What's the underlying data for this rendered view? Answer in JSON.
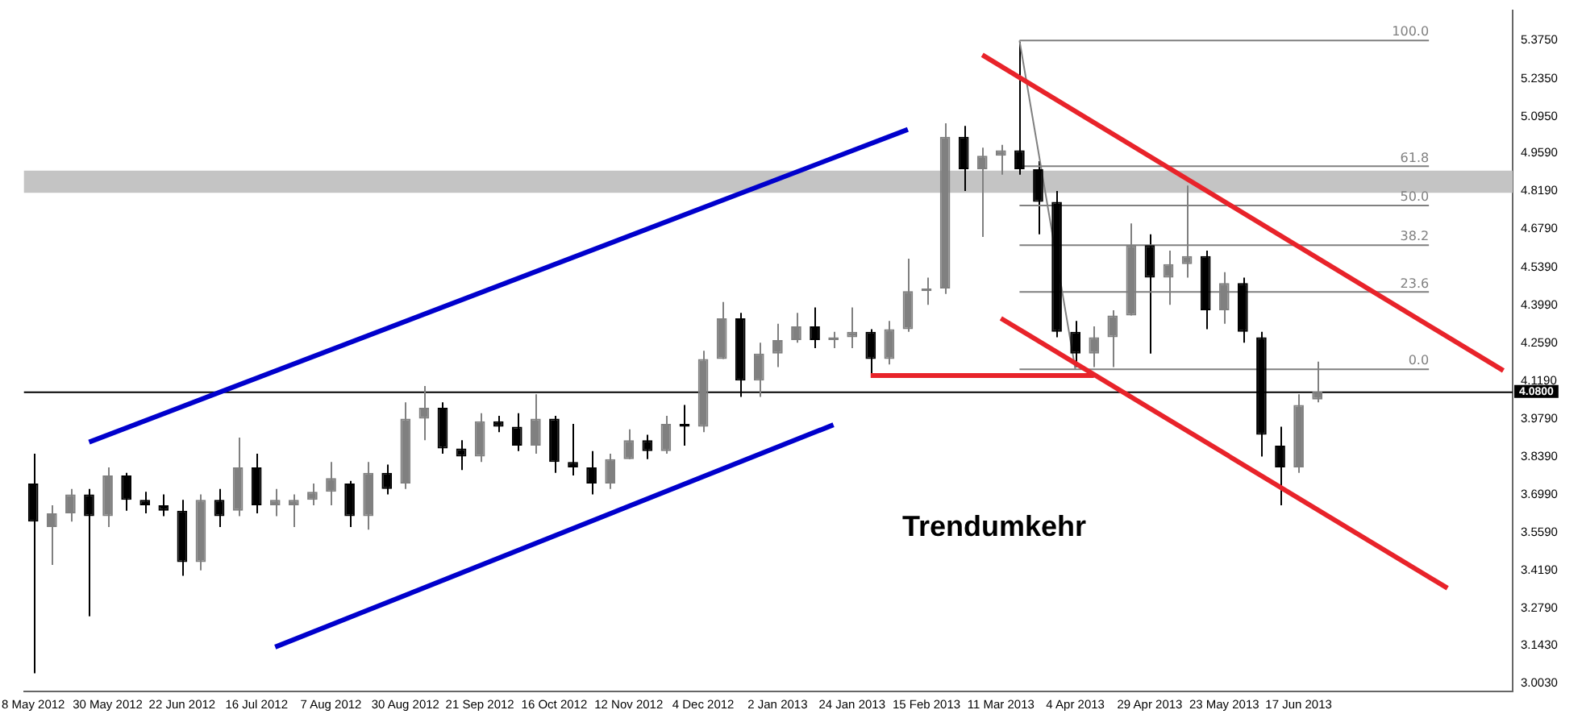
{
  "chart_data": {
    "type": "candlestick",
    "categories": [
      "8 May 2012",
      null,
      null,
      null,
      "30 May 2012",
      null,
      null,
      null,
      "22 Jun 2012",
      null,
      null,
      null,
      "16 Jul 2012",
      null,
      null,
      null,
      "7 Aug 2012",
      null,
      null,
      null,
      "30 Aug 2012",
      null,
      null,
      null,
      "21 Sep 2012",
      null,
      null,
      null,
      "16 Oct 2012",
      null,
      null,
      null,
      "12 Nov 2012",
      null,
      null,
      null,
      "4 Dec 2012",
      null,
      null,
      null,
      "2 Jan 2013",
      null,
      null,
      null,
      "24 Jan 2013",
      null,
      null,
      null,
      "15 Feb 2013",
      null,
      null,
      null,
      "11 Mar 2013",
      null,
      null,
      null,
      "4 Apr 2013",
      null,
      null,
      null,
      "29 Apr 2013",
      null,
      null,
      null,
      "23 May 2013",
      null,
      null,
      null,
      "17 Jun 2013",
      null,
      null,
      null,
      null,
      null,
      null,
      null,
      null,
      null,
      null,
      null
    ],
    "ylim": [
      2.973,
      5.486
    ],
    "yticks": [
      {
        "value": 5.375,
        "label": "5.3750"
      },
      {
        "value": 5.235,
        "label": "5.2350"
      },
      {
        "value": 5.095,
        "label": "5.0950"
      },
      {
        "value": 4.959,
        "label": "4.9590"
      },
      {
        "value": 4.819,
        "label": "4.8190"
      },
      {
        "value": 4.679,
        "label": "4.6790"
      },
      {
        "value": 4.539,
        "label": "4.5390"
      },
      {
        "value": 4.399,
        "label": "4.3990"
      },
      {
        "value": 4.259,
        "label": "4.2590"
      },
      {
        "value": 4.119,
        "label": "4.1190"
      },
      {
        "value": 3.979,
        "label": "3.9790"
      },
      {
        "value": 3.839,
        "label": "3.8390"
      },
      {
        "value": 3.699,
        "label": "3.6990"
      },
      {
        "value": 3.559,
        "label": "3.5590"
      },
      {
        "value": 3.419,
        "label": "3.4190"
      },
      {
        "value": 3.279,
        "label": "3.2790"
      },
      {
        "value": 3.143,
        "label": "3.1430"
      },
      {
        "value": 3.003,
        "label": "3.0030"
      }
    ],
    "ref_lines": [
      {
        "axis": "y",
        "value": 4.08,
        "label": "4.0800",
        "color": "#000000"
      }
    ],
    "bands": [
      {
        "axis": "y",
        "from": 4.813,
        "to": 4.895,
        "color": "#c4c4c4"
      }
    ],
    "annotations": [
      "Trendumkehr"
    ],
    "legend": false,
    "series": [
      {
        "type": "candlestick",
        "colors": [
          "#000000",
          "#808080",
          "#808080",
          "#000000",
          "#808080",
          "#000000",
          "#000000",
          "#000000",
          "#000000",
          "#808080",
          "#000000",
          "#808080",
          "#000000",
          "#808080",
          "#808080",
          "#808080",
          "#808080",
          "#000000",
          "#808080",
          "#000000",
          "#808080",
          "#808080",
          "#000000",
          "#000000",
          "#808080",
          "#000000",
          "#000000",
          "#808080",
          "#000000",
          "#000000",
          "#000000",
          "#808080",
          "#808080",
          "#000000",
          "#808080",
          "#000000",
          "#808080",
          "#808080",
          "#000000",
          "#808080",
          "#808080",
          "#808080",
          "#000000",
          "#808080",
          "#808080",
          "#000000",
          "#808080",
          "#808080",
          "#808080",
          "#808080",
          "#000000",
          "#808080",
          "#808080",
          "#000000",
          "#000000",
          "#000000",
          "#000000",
          "#808080",
          "#808080",
          "#808080",
          "#000000",
          "#808080",
          "#808080",
          "#000000",
          "#808080",
          "#000000",
          "#000000",
          "#000000",
          "#808080",
          "#808080",
          null,
          null,
          null,
          null,
          null,
          null,
          null,
          null,
          null,
          null
        ],
        "ohlc": [
          [
            3.74,
            3.85,
            3.04,
            3.6
          ],
          [
            3.58,
            3.66,
            3.44,
            3.63
          ],
          [
            3.63,
            3.72,
            3.6,
            3.7
          ],
          [
            3.7,
            3.72,
            3.25,
            3.62
          ],
          [
            3.62,
            3.8,
            3.58,
            3.77
          ],
          [
            3.77,
            3.78,
            3.64,
            3.68
          ],
          [
            3.68,
            3.71,
            3.63,
            3.66
          ],
          [
            3.66,
            3.7,
            3.62,
            3.64
          ],
          [
            3.64,
            3.68,
            3.4,
            3.45
          ],
          [
            3.45,
            3.7,
            3.42,
            3.68
          ],
          [
            3.68,
            3.72,
            3.58,
            3.62
          ],
          [
            3.64,
            3.91,
            3.62,
            3.8
          ],
          [
            3.8,
            3.85,
            3.63,
            3.66
          ],
          [
            3.66,
            3.72,
            3.62,
            3.68
          ],
          [
            3.66,
            3.7,
            3.58,
            3.68
          ],
          [
            3.68,
            3.74,
            3.66,
            3.71
          ],
          [
            3.71,
            3.82,
            3.66,
            3.76
          ],
          [
            3.74,
            3.75,
            3.58,
            3.62
          ],
          [
            3.62,
            3.82,
            3.57,
            3.78
          ],
          [
            3.78,
            3.81,
            3.7,
            3.72
          ],
          [
            3.74,
            4.04,
            3.72,
            3.98
          ],
          [
            3.98,
            4.1,
            3.9,
            4.02
          ],
          [
            4.02,
            4.04,
            3.85,
            3.87
          ],
          [
            3.87,
            3.9,
            3.79,
            3.84
          ],
          [
            3.84,
            4.0,
            3.82,
            3.97
          ],
          [
            3.97,
            3.99,
            3.93,
            3.95
          ],
          [
            3.95,
            4.0,
            3.86,
            3.88
          ],
          [
            3.88,
            4.07,
            3.85,
            3.98
          ],
          [
            3.98,
            3.99,
            3.78,
            3.82
          ],
          [
            3.82,
            3.96,
            3.77,
            3.8
          ],
          [
            3.8,
            3.86,
            3.7,
            3.74
          ],
          [
            3.74,
            3.85,
            3.72,
            3.83
          ],
          [
            3.83,
            3.94,
            3.83,
            3.9
          ],
          [
            3.9,
            3.92,
            3.83,
            3.86
          ],
          [
            3.86,
            3.99,
            3.85,
            3.96
          ],
          [
            3.96,
            4.03,
            3.88,
            3.95
          ],
          [
            3.95,
            4.23,
            3.93,
            4.2
          ],
          [
            4.2,
            4.41,
            4.2,
            4.35
          ],
          [
            4.35,
            4.37,
            4.06,
            4.12
          ],
          [
            4.12,
            4.26,
            4.06,
            4.22
          ],
          [
            4.22,
            4.33,
            4.17,
            4.27
          ],
          [
            4.27,
            4.37,
            4.26,
            4.32
          ],
          [
            4.32,
            4.39,
            4.24,
            4.27
          ],
          [
            4.27,
            4.3,
            4.24,
            4.28
          ],
          [
            4.28,
            4.39,
            4.24,
            4.3
          ],
          [
            4.3,
            4.31,
            4.14,
            4.2
          ],
          [
            4.2,
            4.34,
            4.18,
            4.31
          ],
          [
            4.31,
            4.57,
            4.3,
            4.45
          ],
          [
            4.45,
            4.5,
            4.4,
            4.46
          ],
          [
            4.46,
            5.07,
            4.44,
            5.02
          ],
          [
            5.02,
            5.06,
            4.82,
            4.9
          ],
          [
            4.9,
            4.98,
            4.65,
            4.95
          ],
          [
            4.95,
            4.99,
            4.88,
            4.97
          ],
          [
            4.97,
            5.37,
            4.88,
            4.9
          ],
          [
            4.9,
            4.93,
            4.66,
            4.78
          ],
          [
            4.78,
            4.82,
            4.28,
            4.3
          ],
          [
            4.3,
            4.34,
            4.17,
            4.22
          ],
          [
            4.22,
            4.32,
            4.17,
            4.28
          ],
          [
            4.28,
            4.38,
            4.17,
            4.36
          ],
          [
            4.36,
            4.7,
            4.36,
            4.62
          ],
          [
            4.62,
            4.66,
            4.22,
            4.5
          ],
          [
            4.5,
            4.6,
            4.4,
            4.55
          ],
          [
            4.55,
            4.84,
            4.5,
            4.58
          ],
          [
            4.58,
            4.6,
            4.31,
            4.38
          ],
          [
            4.38,
            4.52,
            4.33,
            4.48
          ],
          [
            4.48,
            4.5,
            4.26,
            4.3
          ],
          [
            4.28,
            4.3,
            3.84,
            3.92
          ],
          [
            3.88,
            3.95,
            3.66,
            3.8
          ],
          [
            3.8,
            4.07,
            3.78,
            4.03
          ],
          [
            4.05,
            4.19,
            4.04,
            4.08
          ],
          null,
          null,
          null,
          null,
          null,
          null,
          null,
          null,
          null,
          null
        ]
      },
      {
        "type": "line",
        "color": "#0000cc",
        "values": [
          null,
          null,
          null,
          3.893,
          null,
          null,
          null,
          null,
          null,
          null,
          null,
          null,
          null,
          null,
          null,
          null,
          null,
          null,
          null,
          null,
          null,
          null,
          null,
          null,
          null,
          null,
          null,
          null,
          null,
          null,
          null,
          null,
          null,
          null,
          null,
          null,
          null,
          null,
          null,
          null,
          null,
          null,
          null,
          null,
          null,
          null,
          null,
          5.047,
          null,
          null,
          null,
          null,
          null,
          null,
          null,
          null,
          null,
          null,
          null,
          null,
          null,
          null,
          null,
          null,
          null,
          null,
          null,
          null,
          null,
          null,
          null,
          null,
          null,
          null,
          null,
          null,
          null,
          null,
          null,
          null
        ]
      },
      {
        "type": "line",
        "color": "#0000cc",
        "values": [
          null,
          null,
          null,
          null,
          null,
          null,
          null,
          null,
          null,
          null,
          null,
          null,
          null,
          3.137,
          null,
          null,
          null,
          null,
          null,
          null,
          null,
          null,
          null,
          null,
          null,
          null,
          null,
          null,
          null,
          null,
          null,
          null,
          null,
          null,
          null,
          null,
          null,
          null,
          null,
          null,
          null,
          null,
          null,
          3.957,
          null,
          null,
          null,
          null,
          null,
          null,
          null,
          null,
          null,
          null,
          null,
          null,
          null,
          null,
          null,
          null,
          null,
          null,
          null,
          null,
          null,
          null,
          null,
          null,
          null,
          null,
          null,
          null,
          null,
          null,
          null,
          null,
          null,
          null,
          null,
          null
        ]
      },
      {
        "type": "line",
        "color": "#e8232a",
        "values": [
          null,
          null,
          null,
          null,
          null,
          null,
          null,
          null,
          null,
          null,
          null,
          null,
          null,
          null,
          null,
          null,
          null,
          null,
          null,
          null,
          null,
          null,
          null,
          null,
          null,
          null,
          null,
          null,
          null,
          null,
          null,
          null,
          null,
          null,
          null,
          null,
          null,
          null,
          null,
          null,
          null,
          null,
          null,
          null,
          null,
          null,
          null,
          null,
          null,
          null,
          null,
          5.322,
          null,
          null,
          null,
          null,
          null,
          null,
          null,
          null,
          null,
          null,
          null,
          null,
          null,
          null,
          null,
          null,
          null,
          null,
          null,
          null,
          null,
          null,
          null,
          null,
          null,
          null,
          null,
          4.157
        ]
      },
      {
        "type": "line",
        "color": "#e8232a",
        "values": [
          null,
          null,
          null,
          null,
          null,
          null,
          null,
          null,
          null,
          null,
          null,
          null,
          null,
          null,
          null,
          null,
          null,
          null,
          null,
          null,
          null,
          null,
          null,
          null,
          null,
          null,
          null,
          null,
          null,
          null,
          null,
          null,
          null,
          null,
          null,
          null,
          null,
          null,
          null,
          null,
          null,
          null,
          null,
          null,
          null,
          null,
          null,
          null,
          null,
          null,
          null,
          null,
          4.35,
          null,
          null,
          null,
          null,
          null,
          null,
          null,
          null,
          null,
          null,
          null,
          null,
          null,
          null,
          null,
          null,
          null,
          null,
          null,
          null,
          null,
          null,
          null,
          3.354,
          null,
          null,
          null
        ]
      },
      {
        "type": "line",
        "color": "#e8232a",
        "values": [
          null,
          null,
          null,
          null,
          null,
          null,
          null,
          null,
          null,
          null,
          null,
          null,
          null,
          null,
          null,
          null,
          null,
          null,
          null,
          null,
          null,
          null,
          null,
          null,
          null,
          null,
          null,
          null,
          null,
          null,
          null,
          null,
          null,
          null,
          null,
          null,
          null,
          null,
          null,
          null,
          null,
          null,
          null,
          null,
          null,
          4.139,
          null,
          null,
          null,
          null,
          null,
          null,
          null,
          null,
          null,
          null,
          null,
          4.139,
          null,
          null,
          null,
          null,
          null,
          null,
          null,
          null,
          null,
          null,
          null,
          null,
          null,
          null,
          null,
          null,
          null,
          null,
          null,
          null,
          null,
          null
        ]
      },
      {
        "type": "line",
        "color": "#808080",
        "values": [
          null,
          null,
          null,
          null,
          null,
          null,
          null,
          null,
          null,
          null,
          null,
          null,
          null,
          null,
          null,
          null,
          null,
          null,
          null,
          null,
          null,
          null,
          null,
          null,
          null,
          null,
          null,
          null,
          null,
          null,
          null,
          null,
          null,
          null,
          null,
          null,
          null,
          null,
          null,
          null,
          null,
          null,
          null,
          null,
          null,
          null,
          null,
          null,
          null,
          null,
          null,
          null,
          null,
          5.375,
          null,
          null,
          4.162,
          null,
          null,
          null,
          null,
          null,
          null,
          null,
          null,
          null,
          null,
          null,
          null,
          null,
          null,
          null,
          null,
          null,
          null,
          null,
          null,
          null,
          null,
          null
        ]
      },
      {
        "type": "line",
        "name": "100.0",
        "color": "#808080",
        "values": [
          null,
          null,
          null,
          null,
          null,
          null,
          null,
          null,
          null,
          null,
          null,
          null,
          null,
          null,
          null,
          null,
          null,
          null,
          null,
          null,
          null,
          null,
          null,
          null,
          null,
          null,
          null,
          null,
          null,
          null,
          null,
          null,
          null,
          null,
          null,
          null,
          null,
          null,
          null,
          null,
          null,
          null,
          null,
          null,
          null,
          null,
          null,
          null,
          null,
          null,
          null,
          null,
          null,
          5.375,
          null,
          null,
          null,
          null,
          null,
          null,
          null,
          null,
          null,
          null,
          null,
          null,
          null,
          null,
          null,
          null,
          null,
          null,
          null,
          null,
          null,
          5.375,
          null,
          null,
          null,
          null
        ]
      },
      {
        "type": "line",
        "name": "61.8",
        "color": "#808080",
        "values": [
          null,
          null,
          null,
          null,
          null,
          null,
          null,
          null,
          null,
          null,
          null,
          null,
          null,
          null,
          null,
          null,
          null,
          null,
          null,
          null,
          null,
          null,
          null,
          null,
          null,
          null,
          null,
          null,
          null,
          null,
          null,
          null,
          null,
          null,
          null,
          null,
          null,
          null,
          null,
          null,
          null,
          null,
          null,
          null,
          null,
          null,
          null,
          null,
          null,
          null,
          null,
          null,
          null,
          4.911,
          null,
          null,
          null,
          null,
          null,
          null,
          null,
          null,
          null,
          null,
          null,
          null,
          null,
          null,
          null,
          null,
          null,
          null,
          null,
          null,
          null,
          4.911,
          null,
          null,
          null,
          null
        ]
      },
      {
        "type": "line",
        "name": "50.0",
        "color": "#808080",
        "values": [
          null,
          null,
          null,
          null,
          null,
          null,
          null,
          null,
          null,
          null,
          null,
          null,
          null,
          null,
          null,
          null,
          null,
          null,
          null,
          null,
          null,
          null,
          null,
          null,
          null,
          null,
          null,
          null,
          null,
          null,
          null,
          null,
          null,
          null,
          null,
          null,
          null,
          null,
          null,
          null,
          null,
          null,
          null,
          null,
          null,
          null,
          null,
          null,
          null,
          null,
          null,
          null,
          null,
          4.766,
          null,
          null,
          null,
          null,
          null,
          null,
          null,
          null,
          null,
          null,
          null,
          null,
          null,
          null,
          null,
          null,
          null,
          null,
          null,
          null,
          null,
          4.766,
          null,
          null,
          null,
          null
        ]
      },
      {
        "type": "line",
        "name": "38.2",
        "color": "#808080",
        "values": [
          null,
          null,
          null,
          null,
          null,
          null,
          null,
          null,
          null,
          null,
          null,
          null,
          null,
          null,
          null,
          null,
          null,
          null,
          null,
          null,
          null,
          null,
          null,
          null,
          null,
          null,
          null,
          null,
          null,
          null,
          null,
          null,
          null,
          null,
          null,
          null,
          null,
          null,
          null,
          null,
          null,
          null,
          null,
          null,
          null,
          null,
          null,
          null,
          null,
          null,
          null,
          null,
          null,
          4.62,
          null,
          null,
          null,
          null,
          null,
          null,
          null,
          null,
          null,
          null,
          null,
          null,
          null,
          null,
          null,
          null,
          null,
          null,
          null,
          null,
          null,
          4.62,
          null,
          null,
          null,
          null
        ]
      },
      {
        "type": "line",
        "name": "23.6",
        "color": "#808080",
        "values": [
          null,
          null,
          null,
          null,
          null,
          null,
          null,
          null,
          null,
          null,
          null,
          null,
          null,
          null,
          null,
          null,
          null,
          null,
          null,
          null,
          null,
          null,
          null,
          null,
          null,
          null,
          null,
          null,
          null,
          null,
          null,
          null,
          null,
          null,
          null,
          null,
          null,
          null,
          null,
          null,
          null,
          null,
          null,
          null,
          null,
          null,
          null,
          null,
          null,
          null,
          null,
          null,
          null,
          4.447,
          null,
          null,
          null,
          null,
          null,
          null,
          null,
          null,
          null,
          null,
          null,
          null,
          null,
          null,
          null,
          null,
          null,
          null,
          null,
          null,
          null,
          4.447,
          null,
          null,
          null,
          null
        ]
      },
      {
        "type": "line",
        "name": "0.0",
        "color": "#808080",
        "values": [
          null,
          null,
          null,
          null,
          null,
          null,
          null,
          null,
          null,
          null,
          null,
          null,
          null,
          null,
          null,
          null,
          null,
          null,
          null,
          null,
          null,
          null,
          null,
          null,
          null,
          null,
          null,
          null,
          null,
          null,
          null,
          null,
          null,
          null,
          null,
          null,
          null,
          null,
          null,
          null,
          null,
          null,
          null,
          null,
          null,
          null,
          null,
          null,
          null,
          null,
          null,
          null,
          null,
          4.162,
          null,
          null,
          null,
          null,
          null,
          null,
          null,
          null,
          null,
          null,
          null,
          null,
          null,
          null,
          null,
          null,
          null,
          null,
          null,
          null,
          null,
          4.162,
          null,
          null,
          null,
          null
        ]
      }
    ]
  }
}
